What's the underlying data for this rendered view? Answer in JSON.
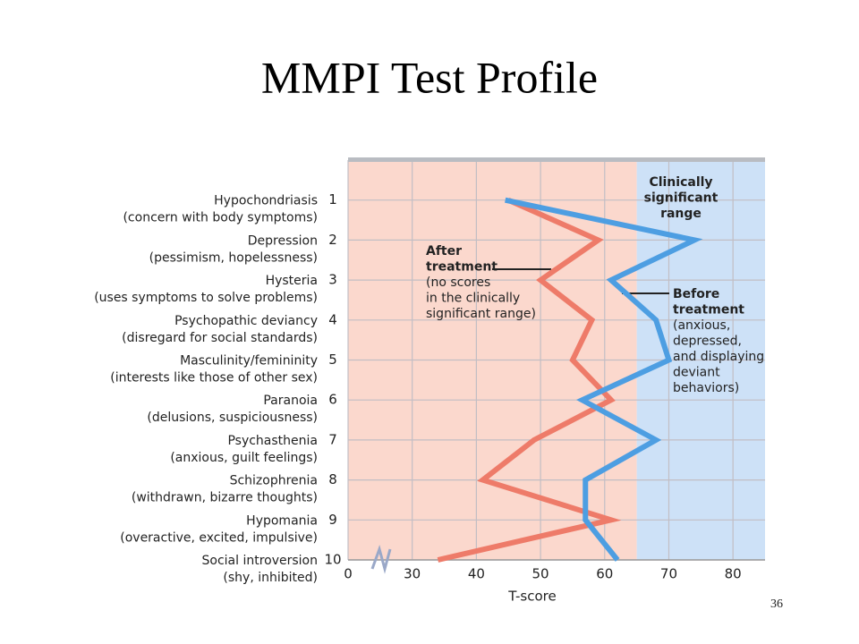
{
  "title": "MMPI Test Profile",
  "page_number": "36",
  "chart_data": {
    "type": "line",
    "orientation": "horizontal",
    "categories": [
      "Hypochondriasis",
      "Depression",
      "Hysteria",
      "Psychopathic deviancy",
      "Masculinity/femininity",
      "Paranoia",
      "Psychasthenia",
      "Schizophrenia",
      "Hypomania",
      "Social introversion"
    ],
    "descriptions": [
      "(concern with body symptoms)",
      "(pessimism, hopelessness)",
      "(uses symptoms to solve problems)",
      "(disregard for social standards)",
      "(interests like those of other sex)",
      "(delusions, suspiciousness)",
      "(anxious, guilt feelings)",
      "(withdrawn, bizarre thoughts)",
      "(overactive, excited, impulsive)",
      "(shy, inhibited)"
    ],
    "yticks": [
      1,
      2,
      3,
      4,
      5,
      6,
      7,
      8,
      9,
      10
    ],
    "ylim": [
      0,
      10
    ],
    "xlabel": "T-score",
    "xlim": [
      0,
      85
    ],
    "x_break": [
      0,
      20
    ],
    "xticks": [
      0,
      30,
      40,
      50,
      60,
      70,
      80
    ],
    "grid": true,
    "regions": [
      {
        "from": 0,
        "to": 65,
        "color": "#fbd8cd"
      },
      {
        "from": 65,
        "to": 85,
        "color": "#cde1f7"
      }
    ],
    "series": [
      {
        "name": "After treatment",
        "color": "#ee7b69",
        "values": [
          45,
          59,
          50,
          58,
          55,
          61,
          49,
          41,
          61,
          34
        ]
      },
      {
        "name": "Before treatment",
        "color": "#4d9ee2",
        "values": [
          44.5,
          74,
          61,
          68,
          70,
          56.5,
          68,
          57,
          57,
          62
        ]
      }
    ],
    "annotations": [
      {
        "heading": [
          "Clinically",
          "significant",
          "range"
        ],
        "note": []
      },
      {
        "heading": [
          "After",
          "treatment"
        ],
        "note": [
          "(no scores",
          "in the clinically",
          "significant range)"
        ]
      },
      {
        "heading": [
          "Before",
          "treatment"
        ],
        "note": [
          "(anxious,",
          "depressed,",
          "and displaying",
          "deviant",
          "behaviors)"
        ]
      }
    ]
  }
}
